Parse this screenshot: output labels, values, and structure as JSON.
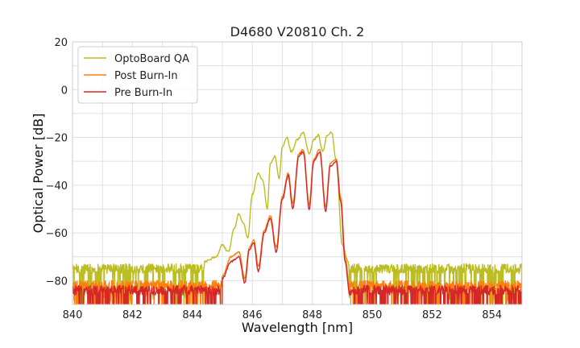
{
  "chart_data": {
    "type": "line",
    "title": "D4680 V20810 Ch. 2",
    "xlabel": "Wavelength [nm]",
    "ylabel": "Optical Power [dB]",
    "xlim": [
      840,
      855
    ],
    "ylim": [
      -90,
      20
    ],
    "xticks": [
      840,
      842,
      844,
      846,
      848,
      850,
      852,
      854
    ],
    "yticks": [
      20,
      0,
      -20,
      -40,
      -60,
      -80
    ],
    "grid": true,
    "legend_position": "top-left",
    "series": [
      {
        "name": "OptoBoard QA",
        "color": "#bcbd22",
        "noise_floor": -75,
        "points": [
          [
            844.4,
            -72
          ],
          [
            844.8,
            -70
          ],
          [
            845.0,
            -65
          ],
          [
            845.2,
            -68
          ],
          [
            845.4,
            -58
          ],
          [
            845.55,
            -52
          ],
          [
            845.7,
            -56
          ],
          [
            845.85,
            -62
          ],
          [
            846.0,
            -44
          ],
          [
            846.2,
            -35
          ],
          [
            846.35,
            -38
          ],
          [
            846.5,
            -50
          ],
          [
            846.6,
            -31
          ],
          [
            846.75,
            -28
          ],
          [
            846.9,
            -37
          ],
          [
            847.0,
            -24
          ],
          [
            847.15,
            -20
          ],
          [
            847.3,
            -26
          ],
          [
            847.5,
            -21
          ],
          [
            847.7,
            -18
          ],
          [
            847.9,
            -27
          ],
          [
            848.05,
            -21
          ],
          [
            848.2,
            -19
          ],
          [
            848.35,
            -26
          ],
          [
            848.5,
            -19
          ],
          [
            848.65,
            -18
          ],
          [
            848.8,
            -30
          ],
          [
            849.0,
            -65
          ],
          [
            849.2,
            -72
          ]
        ]
      },
      {
        "name": "Post Burn-In",
        "color": "#ff7f0e",
        "noise_floor": -82,
        "points": [
          [
            845.0,
            -78
          ],
          [
            845.3,
            -70
          ],
          [
            845.55,
            -68
          ],
          [
            845.75,
            -79
          ],
          [
            845.9,
            -66
          ],
          [
            846.05,
            -63
          ],
          [
            846.2,
            -74
          ],
          [
            846.4,
            -59
          ],
          [
            846.6,
            -53
          ],
          [
            846.8,
            -66
          ],
          [
            847.0,
            -45
          ],
          [
            847.2,
            -35
          ],
          [
            847.35,
            -48
          ],
          [
            847.55,
            -27
          ],
          [
            847.7,
            -25
          ],
          [
            847.9,
            -48
          ],
          [
            848.05,
            -29
          ],
          [
            848.25,
            -25
          ],
          [
            848.45,
            -49
          ],
          [
            848.6,
            -31
          ],
          [
            848.8,
            -29
          ],
          [
            848.95,
            -45
          ],
          [
            849.1,
            -70
          ],
          [
            849.25,
            -84
          ]
        ]
      },
      {
        "name": "Pre Burn-In",
        "color": "#d62728",
        "noise_floor": -84,
        "points": [
          [
            845.0,
            -79
          ],
          [
            845.3,
            -72
          ],
          [
            845.55,
            -70
          ],
          [
            845.75,
            -81
          ],
          [
            845.9,
            -67
          ],
          [
            846.05,
            -64
          ],
          [
            846.2,
            -76
          ],
          [
            846.4,
            -60
          ],
          [
            846.6,
            -54
          ],
          [
            846.8,
            -68
          ],
          [
            847.0,
            -46
          ],
          [
            847.2,
            -36
          ],
          [
            847.35,
            -50
          ],
          [
            847.55,
            -28
          ],
          [
            847.7,
            -26
          ],
          [
            847.9,
            -50
          ],
          [
            848.05,
            -30
          ],
          [
            848.25,
            -26
          ],
          [
            848.45,
            -51
          ],
          [
            848.6,
            -32
          ],
          [
            848.8,
            -30
          ],
          [
            848.95,
            -47
          ],
          [
            849.1,
            -72
          ],
          [
            849.25,
            -86
          ]
        ]
      }
    ]
  }
}
